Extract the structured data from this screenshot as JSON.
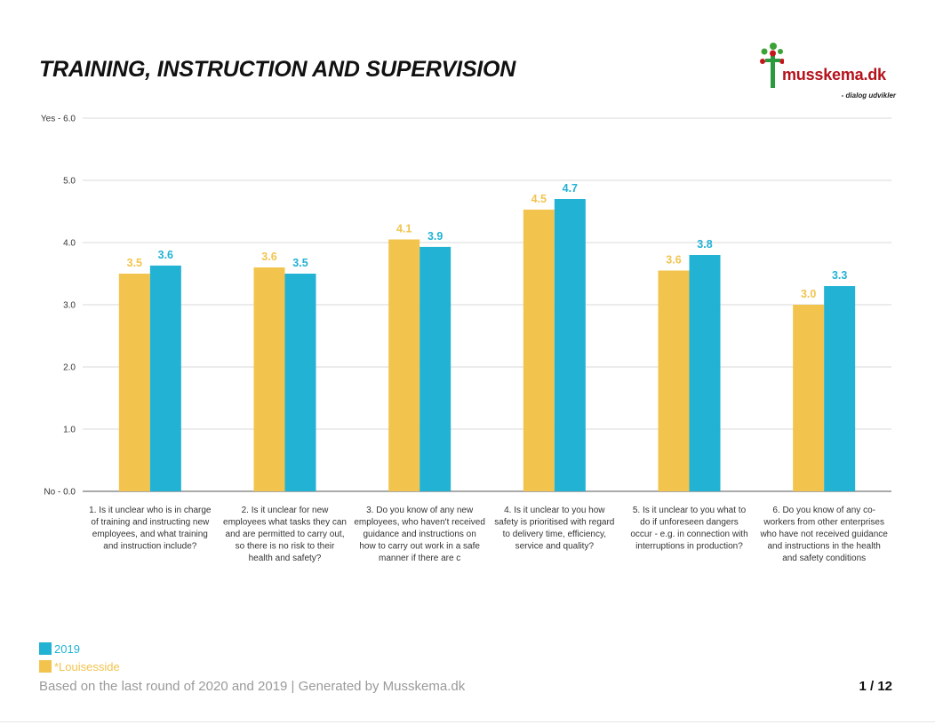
{
  "title": "TRAINING, INSTRUCTION AND SUPERVISION",
  "logo": {
    "name": "musskema.dk",
    "tagline": "- dialog udvikler",
    "icon": "tree-person-logo-icon"
  },
  "colors": {
    "2019": "#22b2d4",
    "Louisesside": "#f2c44e"
  },
  "chart_data": {
    "type": "bar",
    "y_tick_labels": [
      "No - 0.0",
      "1.0",
      "2.0",
      "3.0",
      "4.0",
      "5.0",
      "Yes - 6.0"
    ],
    "ylim": [
      0,
      6
    ],
    "grid": true,
    "legend_position": "bottom-left",
    "categories": [
      "1. Is it unclear who is in charge of training and instructing new employees, and what training and instruction include?",
      "2. Is it unclear for new employees what tasks they can and are permitted to carry out, so there is no risk to their health and safety?",
      "3. Do you know of any new employees, who haven't received guidance and instructions on how to carry out work in a safe manner if there are c",
      "4. Is it unclear to you how safety is prioritised with regard to delivery time, efficiency, service and quality?",
      "5. Is it unclear to you what to do if unforeseen dangers occur - e.g. in connection with interruptions in production?",
      "6. Do you know of any co-workers from other enterprises who have not received guidance and instructions in the health and safety conditions"
    ],
    "category_lines": [
      [
        "1. Is it unclear who is in charge",
        "of training and instructing new",
        "employees, and what training",
        "and instruction include?"
      ],
      [
        "2. Is it unclear for new",
        "employees what tasks they can",
        "and are permitted to carry out,",
        "so there is no risk to their",
        "health and safety?"
      ],
      [
        "3. Do you know of any new",
        "employees, who haven't received",
        "guidance and instructions on",
        "how to carry out work in a safe",
        "manner if there are c"
      ],
      [
        "4. Is it unclear to you how",
        "safety is prioritised with regard",
        "to delivery time, efficiency,",
        "service and quality?"
      ],
      [
        "5. Is it unclear to you what to",
        "do if unforeseen dangers",
        "occur - e.g. in connection with",
        "interruptions in production?"
      ],
      [
        "6. Do you know of any co-",
        "workers from other enterprises",
        "who have not received guidance",
        "and instructions in the health",
        "and safety conditions"
      ]
    ],
    "series": [
      {
        "name": "*Louisesside",
        "color": "#f2c44e",
        "values": [
          3.5,
          3.6,
          4.05,
          4.53,
          3.55,
          3.0
        ],
        "labels": [
          "3.5",
          "3.6",
          "4.1",
          "4.5",
          "3.6",
          "3.0"
        ]
      },
      {
        "name": "2019",
        "color": "#22b2d4",
        "values": [
          3.63,
          3.5,
          3.93,
          4.7,
          3.8,
          3.3
        ],
        "labels": [
          "3.6",
          "3.5",
          "3.9",
          "4.7",
          "3.8",
          "3.3"
        ]
      }
    ]
  },
  "legend": [
    {
      "label": "2019",
      "color": "#22b2d4"
    },
    {
      "label": "*Louisesside",
      "color": "#f2c44e"
    }
  ],
  "footer": "Based on the last round of 2020 and 2019 | Generated by Musskema.dk",
  "page": "1 / 12"
}
